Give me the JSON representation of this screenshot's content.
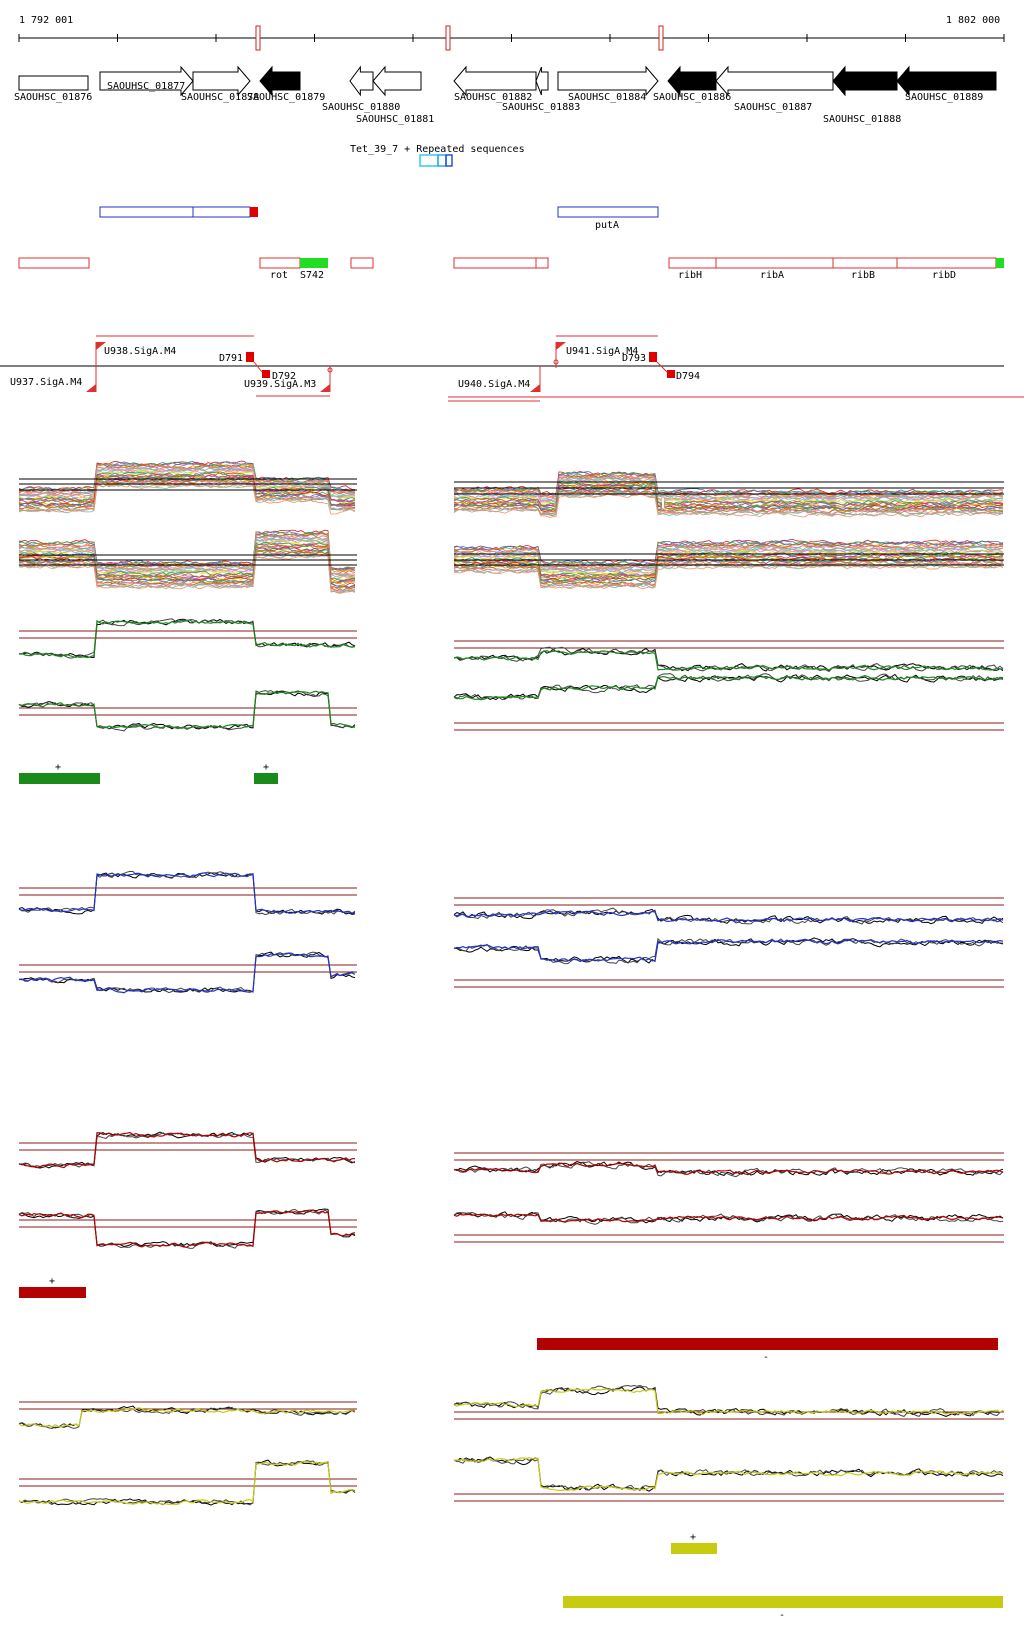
{
  "ruler": {
    "start": "1 792 001",
    "end": "1 802 000"
  },
  "genes": [
    {
      "start": 19,
      "end": 88,
      "strand": "none",
      "fill": "white",
      "label": "SAOUHSC_01876"
    },
    {
      "start": 100,
      "end": 193,
      "strand": "+",
      "fill": "white",
      "label": "SAOUHSC_01877"
    },
    {
      "start": 193,
      "end": 250,
      "strand": "+",
      "fill": "white",
      "label": "SAOUHSC_01878"
    },
    {
      "start": 260,
      "end": 300,
      "strand": "-",
      "fill": "black",
      "label": "SAOUHSC_01879"
    },
    {
      "start": 350,
      "end": 373,
      "strand": "-",
      "fill": "white",
      "label": "SAOUHSC_01880"
    },
    {
      "start": 373,
      "end": 421,
      "strand": "-",
      "fill": "white",
      "label": "SAOUHSC_01881"
    },
    {
      "start": 454,
      "end": 536,
      "strand": "-",
      "fill": "white",
      "label": "SAOUHSC_01882"
    },
    {
      "start": 536,
      "end": 548,
      "strand": "-",
      "fill": "white",
      "label": "SAOUHSC_01883"
    },
    {
      "start": 558,
      "end": 658,
      "strand": "+",
      "fill": "white",
      "label": "SAOUHSC_01884"
    },
    {
      "start": 668,
      "end": 716,
      "strand": "-",
      "fill": "black",
      "label": "SAOUHSC_01886"
    },
    {
      "start": 716,
      "end": 833,
      "strand": "-",
      "fill": "white",
      "label": "SAOUHSC_01887"
    },
    {
      "start": 833,
      "end": 897,
      "strand": "-",
      "fill": "black",
      "label": "SAOUHSC_01888"
    },
    {
      "start": 897,
      "end": 996,
      "strand": "-",
      "fill": "black",
      "label": "SAOUHSC_01889"
    }
  ],
  "repeat_label": "Tet_39_7 + Repeated sequences",
  "operons_blue": {
    "label": "putA"
  },
  "features_red": [
    {
      "label": "rot"
    },
    {
      "label": "S742"
    },
    {
      "label": "ribH"
    },
    {
      "label": "ribA"
    },
    {
      "label": "ribB"
    },
    {
      "label": "ribD"
    }
  ],
  "promoters": [
    {
      "label": "U937.SigA.M4"
    },
    {
      "label": "U938.SigA.M4"
    },
    {
      "label": "D791"
    },
    {
      "label": "D792"
    },
    {
      "label": "U939.SigA.M3"
    },
    {
      "label": "U940.SigA.M4"
    },
    {
      "label": "U941.SigA.M4"
    },
    {
      "label": "D793"
    },
    {
      "label": "D794"
    }
  ],
  "sign_marks": {
    "plus": "+",
    "minus": "-"
  },
  "colors": {
    "green": "#1a8a1a",
    "blue": "#2233cc",
    "red": "#b30000",
    "yellow": "#c8cc10",
    "gene_red": "#e03030",
    "threshold": "#8b1a1a"
  }
}
